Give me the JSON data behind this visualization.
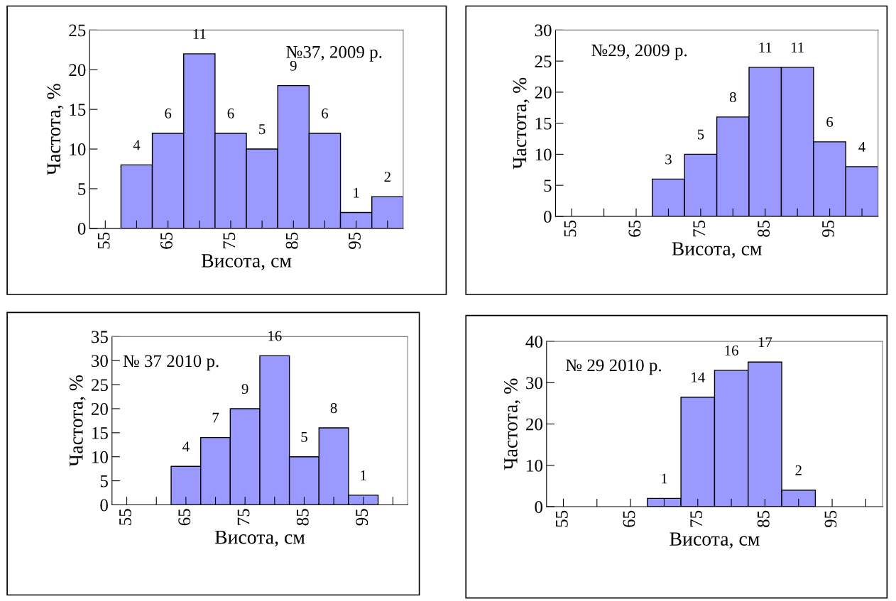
{
  "chart_data": [
    {
      "type": "histogram",
      "bins": [
        52.5,
        57.5,
        62.5,
        67.5,
        72.5,
        77.5,
        82.5,
        87.5,
        92.5,
        97.5,
        102.5
      ],
      "color": "#9999ff",
      "values": [
        0,
        8,
        12,
        22,
        12,
        10,
        18,
        12,
        2,
        4
      ],
      "xlim": [
        52.5,
        102.5
      ],
      "xticks": [
        55,
        {
          "value": 60,
          "label": null
        },
        65,
        {
          "value": 70,
          "label": null
        },
        75,
        {
          "value": 80,
          "label": null
        },
        85,
        {
          "value": 90,
          "label": null
        },
        95,
        {
          "value": 100,
          "label": null
        }
      ],
      "ylim": [
        0,
        25
      ],
      "yticks": [
        0,
        5,
        10,
        15,
        20,
        25
      ],
      "xlabel": "Висота, см",
      "ylabel": "Частота, %",
      "annotations": [
        "№37, 2009 р.",
        {
          "text": "4",
          "x": 60,
          "y": 8
        },
        {
          "text": "6",
          "x": 65,
          "y": 12
        },
        {
          "text": "11",
          "x": 70,
          "y": 22
        },
        {
          "text": "6",
          "x": 75,
          "y": 12
        },
        {
          "text": "5",
          "x": 80,
          "y": 10
        },
        {
          "text": "9",
          "x": 85,
          "y": 18
        },
        {
          "text": "6",
          "x": 90,
          "y": 12
        },
        {
          "text": "1",
          "x": 95,
          "y": 2
        },
        {
          "text": "2",
          "x": 100,
          "y": 4
        }
      ],
      "grid": false,
      "legend": false
    },
    {
      "type": "histogram",
      "bins": [
        52.5,
        57.5,
        62.5,
        67.5,
        72.5,
        77.5,
        82.5,
        87.5,
        92.5,
        97.5,
        102.5
      ],
      "color": "#9999ff",
      "values": [
        0,
        0,
        0,
        6,
        10,
        16,
        24,
        24,
        12,
        8
      ],
      "xlim": [
        52.5,
        102.5
      ],
      "xticks": [
        55,
        {
          "value": 60,
          "label": null
        },
        65,
        {
          "value": 70,
          "label": null
        },
        75,
        {
          "value": 80,
          "label": null
        },
        85,
        {
          "value": 90,
          "label": null
        },
        95,
        {
          "value": 100,
          "label": null
        }
      ],
      "ylim": [
        0,
        30
      ],
      "yticks": [
        0,
        5,
        10,
        15,
        20,
        25,
        30
      ],
      "xlabel": "Висота, см",
      "ylabel": "Частота, %",
      "annotations": [
        "№29, 2009 р.",
        {
          "text": "3",
          "x": 70,
          "y": 6
        },
        {
          "text": "5",
          "x": 75,
          "y": 10
        },
        {
          "text": "8",
          "x": 80,
          "y": 16
        },
        {
          "text": "11",
          "x": 85,
          "y": 24
        },
        {
          "text": "11",
          "x": 90,
          "y": 24
        },
        {
          "text": "6",
          "x": 95,
          "y": 12
        },
        {
          "text": "4",
          "x": 100,
          "y": 8
        }
      ],
      "grid": false,
      "legend": false
    },
    {
      "type": "histogram",
      "bins": [
        52.5,
        57.5,
        62.5,
        67.5,
        72.5,
        77.5,
        82.5,
        87.5,
        92.5,
        97.5,
        102.5
      ],
      "color": "#9999ff",
      "values": [
        0,
        0,
        8,
        14,
        20,
        31,
        10,
        16,
        2,
        0
      ],
      "xlim": [
        52.5,
        102.5
      ],
      "xticks": [
        55,
        {
          "value": 60,
          "label": null
        },
        65,
        {
          "value": 70,
          "label": null
        },
        75,
        {
          "value": 80,
          "label": null
        },
        85,
        {
          "value": 90,
          "label": null
        },
        95,
        {
          "value": 100,
          "label": null
        }
      ],
      "ylim": [
        0,
        35
      ],
      "yticks": [
        0,
        5,
        10,
        15,
        20,
        25,
        30,
        35
      ],
      "xlabel": "Висота, см",
      "ylabel": "Частота, %",
      "annotations": [
        "№ 37 2010 р.",
        {
          "text": "4",
          "x": 65,
          "y": 8
        },
        {
          "text": "7",
          "x": 70,
          "y": 14
        },
        {
          "text": "9",
          "x": 75,
          "y": 20
        },
        {
          "text": "16",
          "x": 80,
          "y": 31
        },
        {
          "text": "5",
          "x": 85,
          "y": 10
        },
        {
          "text": "8",
          "x": 90,
          "y": 16
        },
        {
          "text": "1",
          "x": 95,
          "y": 2
        }
      ],
      "grid": false,
      "legend": false
    },
    {
      "type": "histogram",
      "bins": [
        52.5,
        57.5,
        62.5,
        67.5,
        72.5,
        77.5,
        82.5,
        87.5,
        92.5,
        97.5,
        102.5
      ],
      "color": "#9999ff",
      "values": [
        0,
        0,
        0,
        2,
        26.5,
        33,
        35,
        4,
        0,
        0
      ],
      "xlim": [
        52.5,
        102.5
      ],
      "xticks": [
        55,
        {
          "value": 60,
          "label": null
        },
        65,
        {
          "value": 70,
          "label": null
        },
        75,
        {
          "value": 80,
          "label": null
        },
        85,
        {
          "value": 90,
          "label": null
        },
        95,
        {
          "value": 100,
          "label": null
        }
      ],
      "ylim": [
        0,
        40
      ],
      "yticks": [
        0,
        10,
        20,
        30,
        40
      ],
      "xlabel": "Висота, см",
      "ylabel": "Частота, %",
      "annotations": [
        "№ 29 2010 р.",
        {
          "text": "1",
          "x": 70,
          "y": 2
        },
        {
          "text": "14",
          "x": 75,
          "y": 26.5
        },
        {
          "text": "16",
          "x": 80,
          "y": 33
        },
        {
          "text": "17",
          "x": 85,
          "y": 35
        },
        {
          "text": "2",
          "x": 90,
          "y": 4
        }
      ],
      "grid": false,
      "legend": false
    }
  ]
}
